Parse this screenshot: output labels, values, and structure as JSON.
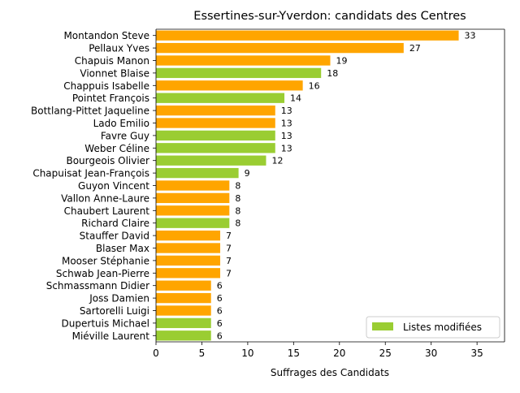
{
  "chart_data": {
    "type": "bar",
    "orientation": "horizontal",
    "title": "Essertines-sur-Yverdon: candidats des Centres",
    "xlabel": "Suffrages des Candidats",
    "ylabel": "",
    "xlim": [
      0,
      38
    ],
    "x_ticks": [
      0,
      5,
      10,
      15,
      20,
      25,
      30,
      35
    ],
    "grid": false,
    "legend": {
      "placement": "bottom-right",
      "entries": [
        {
          "label": "Listes modifiées",
          "color": "#9ACD32"
        }
      ]
    },
    "colors": {
      "default": "#FFA500",
      "modified": "#9ACD32"
    },
    "categories": [
      "Montandon Steve",
      "Pellaux Yves",
      "Chapuis Manon",
      "Vionnet Blaise",
      "Chappuis Isabelle",
      "Pointet François",
      "Bottlang-Pittet Jaqueline",
      "Lado Emilio",
      "Favre Guy",
      "Weber Céline",
      "Bourgeois Olivier",
      "Chapuisat Jean-François",
      "Guyon Vincent",
      "Vallon Anne-Laure",
      "Chaubert Laurent",
      "Richard Claire",
      "Stauffer David",
      "Blaser Max",
      "Mooser Stéphanie",
      "Schwab Jean-Pierre",
      "Schmassmann Didier",
      "Joss Damien",
      "Sartorelli Luigi",
      "Dupertuis Michael",
      "Miéville Laurent"
    ],
    "values": [
      33,
      27,
      19,
      18,
      16,
      14,
      13,
      13,
      13,
      13,
      12,
      9,
      8,
      8,
      8,
      8,
      7,
      7,
      7,
      7,
      6,
      6,
      6,
      6,
      6
    ],
    "modified": [
      false,
      false,
      false,
      true,
      false,
      true,
      false,
      false,
      true,
      true,
      true,
      true,
      false,
      false,
      false,
      true,
      false,
      false,
      false,
      false,
      false,
      false,
      false,
      true,
      true
    ]
  }
}
